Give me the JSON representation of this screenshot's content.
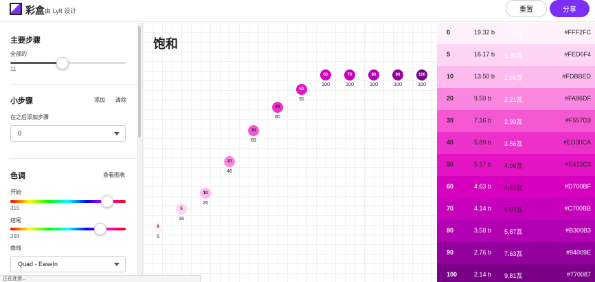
{
  "header": {
    "brand": "彩盒",
    "byline": "由 Lyft 设计",
    "reset_label": "重置",
    "share_label": "分享",
    "accent_color": "#7B2FF7"
  },
  "sidebar": {
    "main_steps": {
      "title": "主要步骤",
      "label": "全部的",
      "value": "11",
      "slider_fraction": 0.45
    },
    "minor_steps": {
      "title": "小步骤",
      "add_label": "添加",
      "clear_label": "清除",
      "after_label": "在之后添加步骤",
      "selected": "0"
    },
    "hue": {
      "title": "色调",
      "view_chart_label": "查看图表",
      "start_label": "开始",
      "start_value": "315",
      "start_fraction": 0.84,
      "end_label": "结尾",
      "end_value": "293",
      "end_fraction": 0.78,
      "curve_label": "曲线",
      "curve_value": "Quad - EaseIn"
    }
  },
  "status_text": "正在连接...",
  "main": {
    "title": "饱和",
    "points": [
      {
        "label": "0",
        "value": "5",
        "color": "#FFF2FC"
      },
      {
        "label": "5",
        "value": "16",
        "color": "#FED6F4"
      },
      {
        "label": "10",
        "value": "26",
        "color": "#FDBBED"
      },
      {
        "label": "20",
        "value": "46",
        "color": "#FA86DF"
      },
      {
        "label": "30",
        "value": "65",
        "color": "#F557D3"
      },
      {
        "label": "40",
        "value": "80",
        "color": "#ED30CA"
      },
      {
        "label": "50",
        "value": "91",
        "color": "#E413C3"
      },
      {
        "label": "60",
        "value": "100",
        "color": "#D700BF"
      },
      {
        "label": "70",
        "value": "100",
        "color": "#C700BB"
      },
      {
        "label": "80",
        "value": "100",
        "color": "#B300B3"
      },
      {
        "label": "90",
        "value": "100",
        "color": "#94009E"
      },
      {
        "label": "100",
        "value": "100",
        "color": "#770087"
      }
    ]
  },
  "palette": [
    {
      "step": "0",
      "b": "19.32 b",
      "w": "1.09瓦",
      "hex": "#FFF2FC",
      "color": "#FFF2FC",
      "text": "#222",
      "wtext": "#ffffff"
    },
    {
      "step": "5",
      "b": "16.17 b",
      "w": "1.30瓦",
      "hex": "#FED6F4",
      "color": "#FED6F4",
      "text": "#222",
      "wtext": "#ffffff"
    },
    {
      "step": "10",
      "b": "13.50 b",
      "w": "1.56瓦",
      "hex": "#FDBBED",
      "color": "#FDBBED",
      "text": "#222",
      "wtext": "#ffffff"
    },
    {
      "step": "20",
      "b": "9.50 b",
      "w": "2.21瓦",
      "hex": "#FA86DF",
      "color": "#FA86DF",
      "text": "#222",
      "wtext": "#ffffff"
    },
    {
      "step": "30",
      "b": "7.16 b",
      "w": "2.93瓦",
      "hex": "#F557D3",
      "color": "#F557D3",
      "text": "#222",
      "wtext": "#ffffff"
    },
    {
      "step": "40",
      "b": "5.89 b",
      "w": "3.56瓦",
      "hex": "#ED30CA",
      "color": "#ED30CA",
      "text": "#222",
      "wtext": "#ffffff"
    },
    {
      "step": "50",
      "b": "5.17 b",
      "w": "4.06瓦",
      "hex": "#E413C3",
      "color": "#E413C3",
      "text": "#222",
      "wtext": "#222222"
    },
    {
      "step": "60",
      "b": "4.63 b",
      "w": "4.53瓦",
      "hex": "#D700BF",
      "color": "#D700BF",
      "text": "#ffffff",
      "wtext": "#222222"
    },
    {
      "step": "70",
      "b": "4.14 b",
      "w": "5.07瓦",
      "hex": "#C700BB",
      "color": "#C700BB",
      "text": "#ffffff",
      "wtext": "#222222"
    },
    {
      "step": "80",
      "b": "3.58 b",
      "w": "5.87瓦",
      "hex": "#B300B3",
      "color": "#B300B3",
      "text": "#ffffff",
      "wtext": "#ffffff"
    },
    {
      "step": "90",
      "b": "2.76 b",
      "w": "7.63瓦",
      "hex": "#94009E",
      "color": "#94009E",
      "text": "#ffffff",
      "wtext": "#ffffff"
    },
    {
      "step": "100",
      "b": "2.14 b",
      "w": "9.81瓦",
      "hex": "#770087",
      "color": "#770087",
      "text": "#ffffff",
      "wtext": "#ffffff"
    }
  ]
}
